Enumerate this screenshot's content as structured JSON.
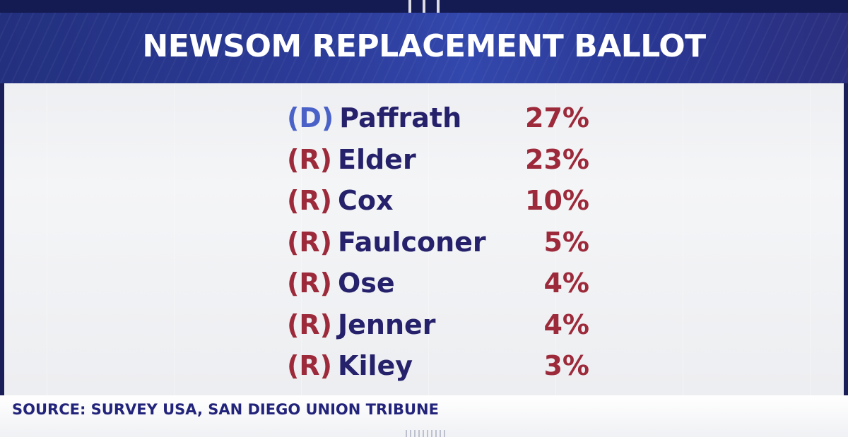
{
  "header": {
    "title": "NEWSOM REPLACEMENT BALLOT"
  },
  "candidates": [
    {
      "party": "(D)",
      "name": "Paffrath",
      "percent": "27%"
    },
    {
      "party": "(R)",
      "name": "Elder",
      "percent": "23%"
    },
    {
      "party": "(R)",
      "name": "Cox",
      "percent": "10%"
    },
    {
      "party": "(R)",
      "name": "Faulconer",
      "percent": "5%"
    },
    {
      "party": "(R)",
      "name": "Ose",
      "percent": "4%"
    },
    {
      "party": "(R)",
      "name": "Jenner",
      "percent": "4%"
    },
    {
      "party": "(R)",
      "name": "Kiley",
      "percent": "3%"
    }
  ],
  "footer": {
    "source": "SOURCE: SURVEY USA, SAN DIEGO UNION TRIBUNE"
  },
  "colors": {
    "header_blue": "#2c3c9a",
    "republican_red": "#9c2a3a",
    "democrat_blue": "#4a62c8",
    "name_navy": "#26216b"
  }
}
